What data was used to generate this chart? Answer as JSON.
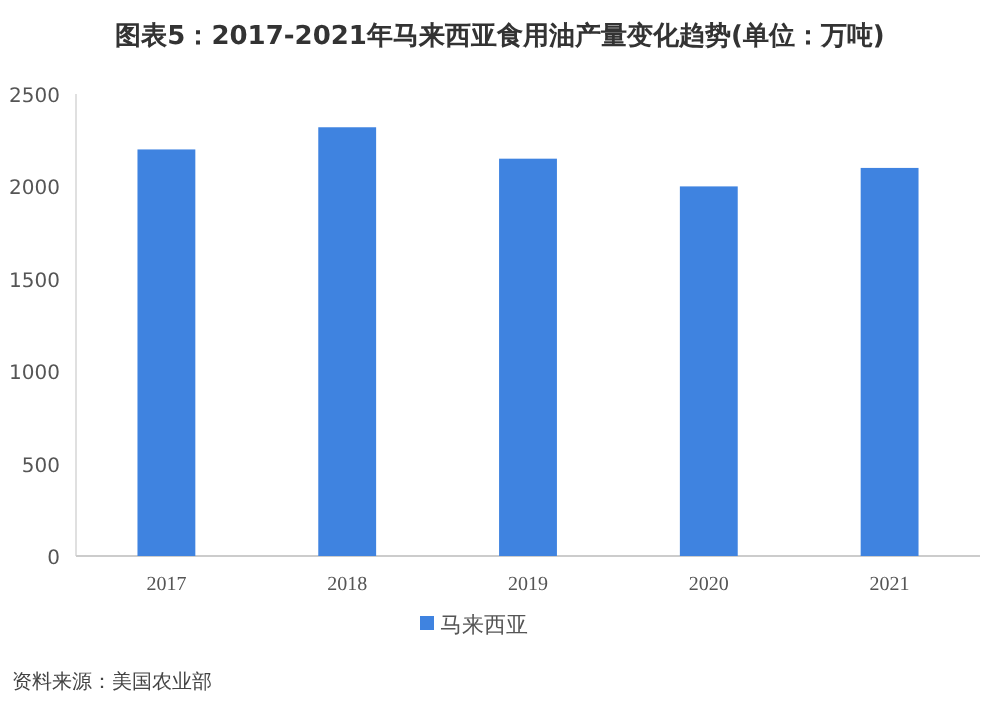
{
  "chart_data": {
    "type": "bar",
    "title": "图表5：2017-2021年马来西亚食用油产量变化趋势(单位：万吨)",
    "categories": [
      "2017",
      "2018",
      "2019",
      "2020",
      "2021"
    ],
    "series": [
      {
        "name": "马来西亚",
        "color": "#3f83e0",
        "values": [
          2200,
          2320,
          2150,
          2000,
          2100
        ]
      }
    ],
    "ylim": [
      0,
      2500
    ],
    "yticks": [
      0,
      500,
      1000,
      1500,
      2000,
      2500
    ],
    "grid": false,
    "legend": "bottom",
    "annotations": [
      "资料来源：美国农业部"
    ]
  }
}
